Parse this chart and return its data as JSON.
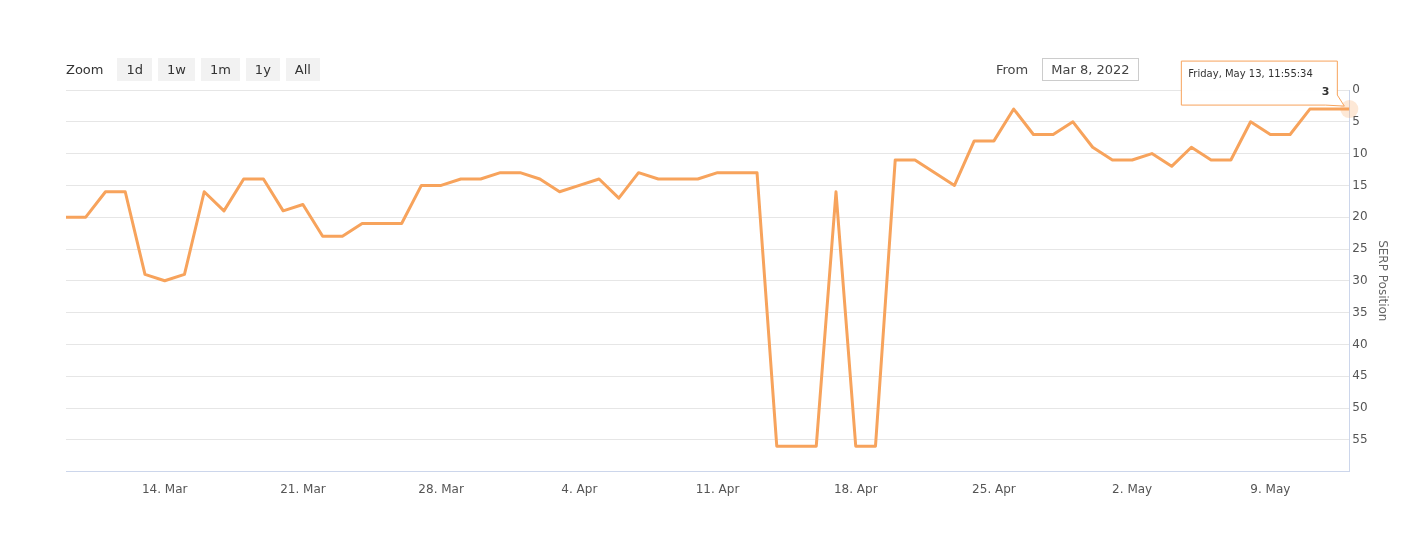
{
  "chart_data": {
    "type": "line",
    "ylabel": "SERP Position",
    "x": [
      "--03-09",
      "--03-10",
      "--03-11",
      "--03-12",
      "--03-13",
      "--03-14",
      "--03-15",
      "--03-16",
      "--03-17",
      "--03-18",
      "--03-19",
      "--03-20",
      "--03-21",
      "--03-22",
      "--03-23",
      "--03-24",
      "--03-25",
      "--03-26",
      "--03-27",
      "--03-28",
      "--03-29",
      "--03-30",
      "--03-31",
      "--04-01",
      "--04-02",
      "--04-03",
      "--04-04",
      "--04-05",
      "--04-06",
      "--04-07",
      "--04-08",
      "--04-09",
      "--04-10",
      "--04-11",
      "--04-12",
      "--04-13",
      "--04-14",
      "--04-15",
      "--04-16",
      "--04-17",
      "--04-18",
      "--04-19",
      "--04-20",
      "--04-21",
      "--04-22",
      "--04-23",
      "--04-24",
      "--04-25",
      "--04-26",
      "--04-27",
      "--04-28",
      "--04-29",
      "--04-30",
      "--05-01",
      "--05-02",
      "--05-03",
      "--05-04",
      "--05-05",
      "--05-06",
      "--05-07",
      "--05-08",
      "--05-09",
      "--05-10",
      "--05-11",
      "--05-12",
      "--05-13"
    ],
    "series": [
      {
        "color": "#f7a35c",
        "value_labels": [
          null,
          null,
          null,
          null,
          null,
          null,
          null,
          null,
          null,
          null,
          null,
          null,
          null,
          null,
          null,
          null,
          null,
          null,
          null,
          null,
          null,
          null,
          null,
          null,
          null,
          null,
          null,
          null,
          null,
          null,
          null,
          null,
          null,
          null,
          null,
          null,
          null,
          null,
          null,
          null,
          null,
          null,
          null,
          null,
          null,
          null,
          null,
          null,
          null,
          null,
          null,
          null,
          null,
          null,
          null,
          null,
          null,
          null,
          null,
          null,
          null,
          null,
          null,
          null,
          null,
          "3"
        ],
        "values": [
          20,
          20,
          16,
          16,
          29,
          30,
          29,
          16,
          19,
          14,
          14,
          19,
          18,
          23,
          23,
          21,
          21,
          21,
          15,
          15,
          14,
          14,
          13,
          13,
          14,
          16,
          15,
          14,
          17,
          13,
          14,
          14,
          14,
          13,
          13,
          13,
          56,
          56,
          56,
          16,
          56,
          56,
          11,
          11,
          13,
          15,
          8,
          8,
          3,
          7,
          7,
          5,
          9,
          11,
          11,
          10,
          12,
          9,
          11,
          11,
          5,
          7,
          7,
          3,
          3,
          3
        ]
      }
    ],
    "xlim": [
      "--03-09",
      "--05-13"
    ],
    "xticks": [
      {
        "value": "--03-14",
        "label": "14. Mar"
      },
      {
        "value": "--03-21",
        "label": "21. Mar"
      },
      {
        "value": "--03-28",
        "label": "28. Mar"
      },
      {
        "value": "--04-04",
        "label": "4. Apr"
      },
      {
        "value": "--04-11",
        "label": "11. Apr"
      },
      {
        "value": "--04-18",
        "label": "18. Apr"
      },
      {
        "value": "--04-25",
        "label": "25. Apr"
      },
      {
        "value": "--05-02",
        "label": "2. May"
      },
      {
        "value": "--05-09",
        "label": "9. May"
      }
    ],
    "ylim": [
      60,
      0
    ],
    "yticks": [
      0,
      5,
      10,
      15,
      20,
      25,
      30,
      35,
      40,
      45,
      50,
      55
    ],
    "grid": "y",
    "legend": false,
    "marker": "none",
    "line_style": "solid",
    "annotations": [
      "Zoom",
      "1d",
      "1w",
      "1m",
      "1y",
      "All",
      "From",
      "Mar 8, 2022",
      "Friday, May 13, 11:55:34"
    ]
  }
}
